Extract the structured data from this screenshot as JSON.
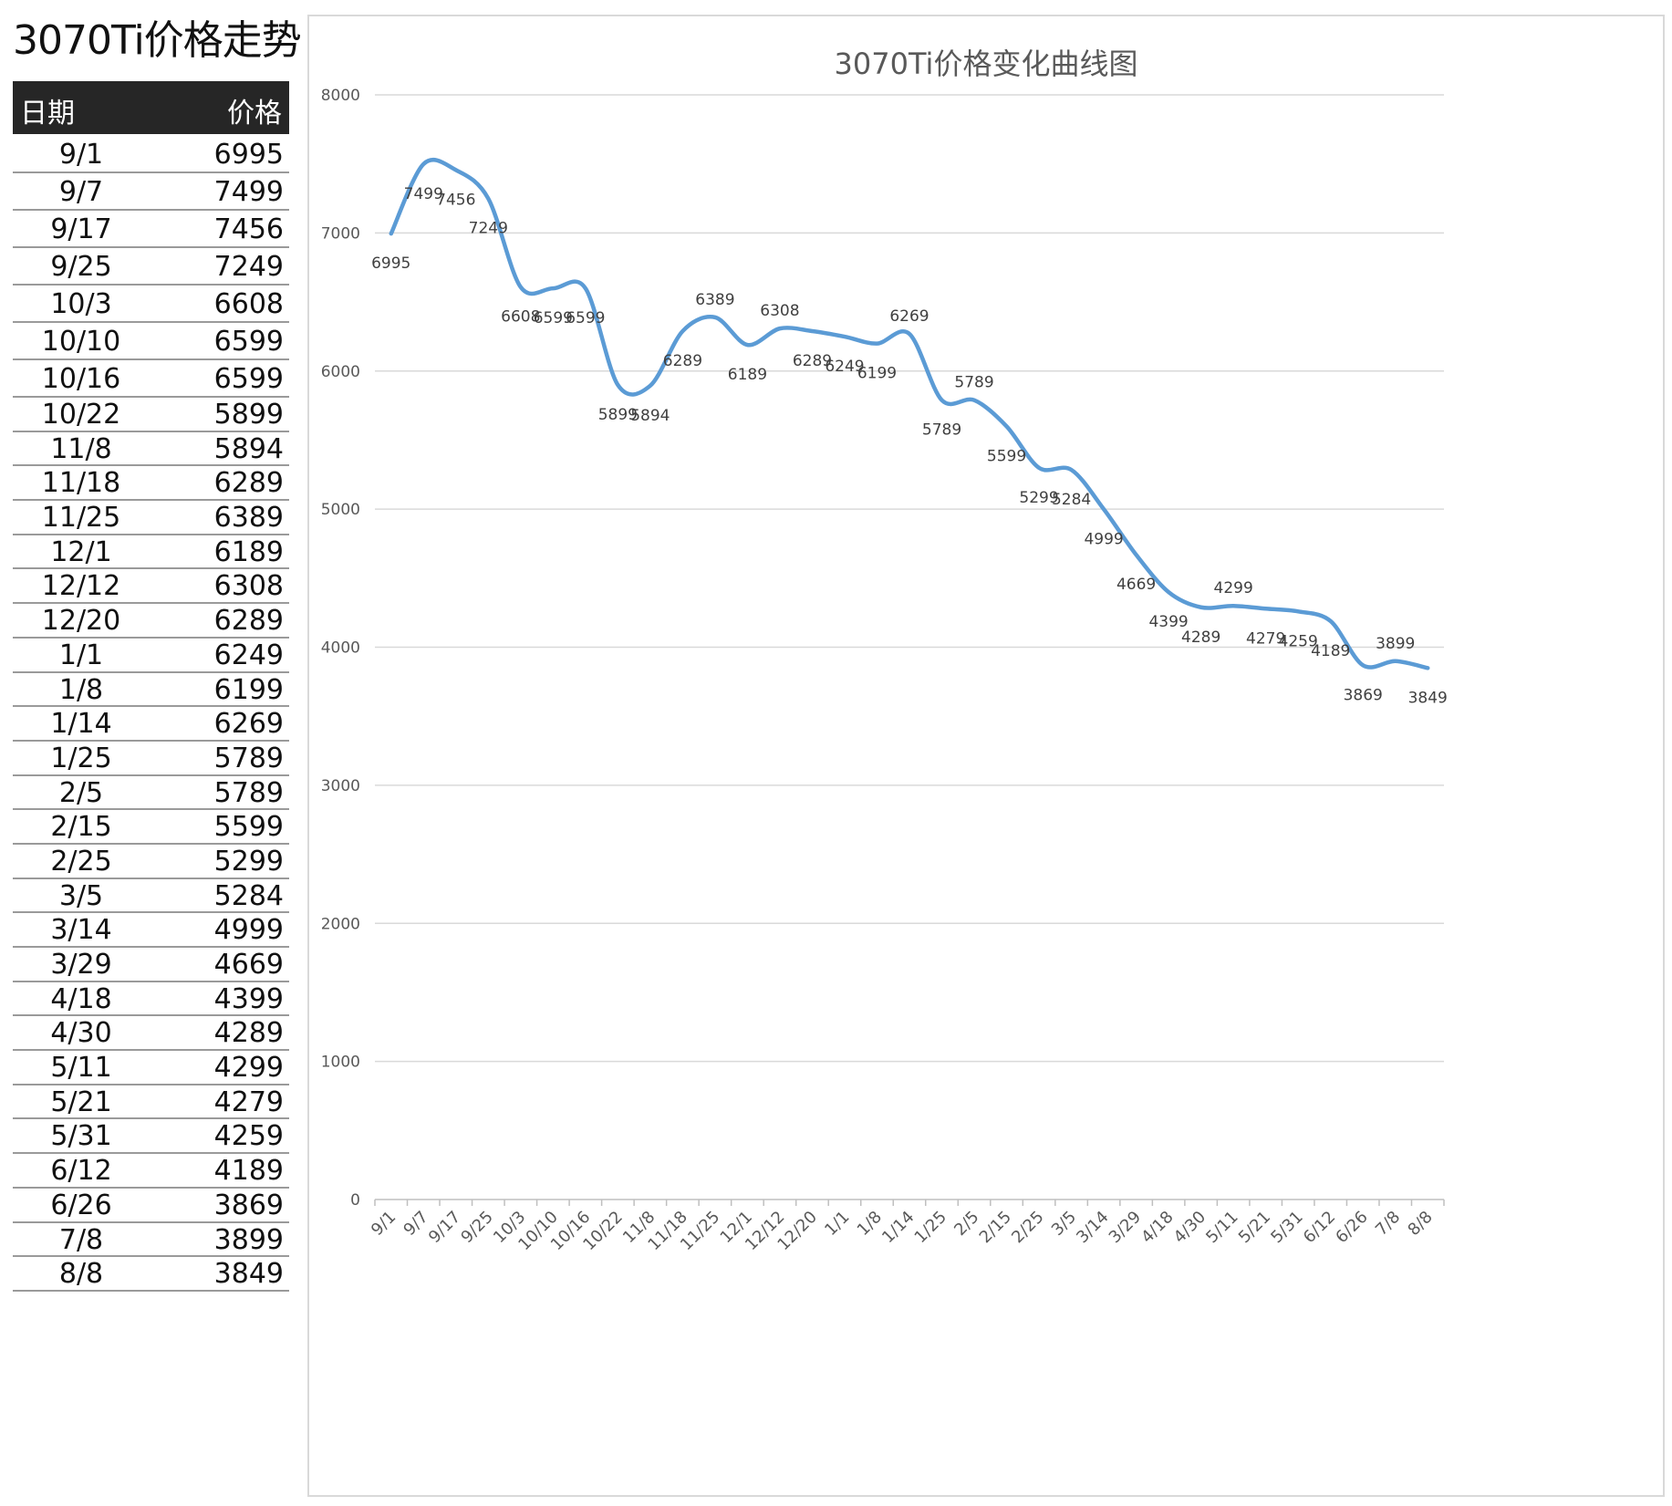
{
  "page_title": "3070Ti价格走势",
  "table": {
    "header_date": "日期",
    "header_price": "价格",
    "rows": [
      {
        "date": "9/1",
        "price": "6995"
      },
      {
        "date": "9/7",
        "price": "7499"
      },
      {
        "date": "9/17",
        "price": "7456"
      },
      {
        "date": "9/25",
        "price": "7249"
      },
      {
        "date": "10/3",
        "price": "6608"
      },
      {
        "date": "10/10",
        "price": "6599"
      },
      {
        "date": "10/16",
        "price": "6599"
      },
      {
        "date": "10/22",
        "price": "5899"
      },
      {
        "date": "11/8",
        "price": "5894"
      },
      {
        "date": "11/18",
        "price": "6289"
      },
      {
        "date": "11/25",
        "price": "6389"
      },
      {
        "date": "12/1",
        "price": "6189"
      },
      {
        "date": "12/12",
        "price": "6308"
      },
      {
        "date": "12/20",
        "price": "6289"
      },
      {
        "date": "1/1",
        "price": "6249"
      },
      {
        "date": "1/8",
        "price": "6199"
      },
      {
        "date": "1/14",
        "price": "6269"
      },
      {
        "date": "1/25",
        "price": "5789"
      },
      {
        "date": "2/5",
        "price": "5789"
      },
      {
        "date": "2/15",
        "price": "5599"
      },
      {
        "date": "2/25",
        "price": "5299"
      },
      {
        "date": "3/5",
        "price": "5284"
      },
      {
        "date": "3/14",
        "price": "4999"
      },
      {
        "date": "3/29",
        "price": "4669"
      },
      {
        "date": "4/18",
        "price": "4399"
      },
      {
        "date": "4/30",
        "price": "4289"
      },
      {
        "date": "5/11",
        "price": "4299"
      },
      {
        "date": "5/21",
        "price": "4279"
      },
      {
        "date": "5/31",
        "price": "4259"
      },
      {
        "date": "6/12",
        "price": "4189"
      },
      {
        "date": "6/26",
        "price": "3869"
      },
      {
        "date": "7/8",
        "price": "3899"
      },
      {
        "date": "8/8",
        "price": "3849"
      }
    ]
  },
  "colors": {
    "line": "#5b9bd5",
    "grid": "#d9d9d9",
    "header_bg": "#262626",
    "text": "#595959"
  },
  "chart_data": {
    "type": "line",
    "title": "3070Ti价格变化曲线图",
    "xlabel": "",
    "ylabel": "",
    "ylim": [
      0,
      8000
    ],
    "yticks": [
      0,
      1000,
      2000,
      3000,
      4000,
      5000,
      6000,
      7000,
      8000
    ],
    "grid": true,
    "smooth": true,
    "data_labels": true,
    "categories": [
      "9/1",
      "9/7",
      "9/17",
      "9/25",
      "10/3",
      "10/10",
      "10/16",
      "10/22",
      "11/8",
      "11/18",
      "11/25",
      "12/1",
      "12/12",
      "12/20",
      "1/1",
      "1/8",
      "1/14",
      "1/25",
      "2/5",
      "2/15",
      "2/25",
      "3/5",
      "3/14",
      "3/29",
      "4/18",
      "4/30",
      "5/11",
      "5/21",
      "5/31",
      "6/12",
      "6/26",
      "7/8",
      "8/8"
    ],
    "series": [
      {
        "values": [
          6995,
          7499,
          7456,
          7249,
          6608,
          6599,
          6599,
          5899,
          5894,
          6289,
          6389,
          6189,
          6308,
          6289,
          6249,
          6199,
          6269,
          5789,
          5789,
          5599,
          5299,
          5284,
          4999,
          4669,
          4399,
          4289,
          4299,
          4279,
          4259,
          4189,
          3869,
          3899,
          3849
        ]
      }
    ]
  }
}
